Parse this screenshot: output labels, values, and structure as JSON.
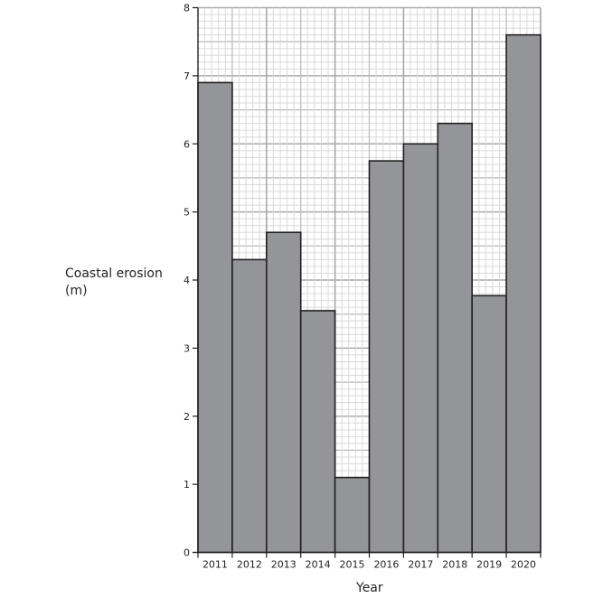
{
  "chart_data": {
    "type": "bar",
    "title": "",
    "xlabel": "Year",
    "ylabel": "Coastal erosion (m)",
    "ylabel_lines": [
      "Coastal erosion",
      "(m)"
    ],
    "categories": [
      "2011",
      "2012",
      "2013",
      "2014",
      "2015",
      "2016",
      "2017",
      "2018",
      "2019",
      "2020"
    ],
    "values": [
      6.9,
      4.3,
      4.7,
      3.55,
      1.1,
      5.75,
      6.0,
      6.3,
      3.77,
      7.6
    ],
    "ylim": [
      0,
      8
    ],
    "yticks": [
      0,
      1,
      2,
      3,
      4,
      5,
      6,
      7,
      8
    ],
    "grid": true,
    "grid_minor_step": 0.1,
    "legend": null,
    "bar_color": "#939598",
    "bar_edge_color": "#231f20"
  },
  "labels": {
    "ylabel_line1": "Coastal erosion",
    "ylabel_line2": "(m)",
    "xlabel": "Year"
  }
}
